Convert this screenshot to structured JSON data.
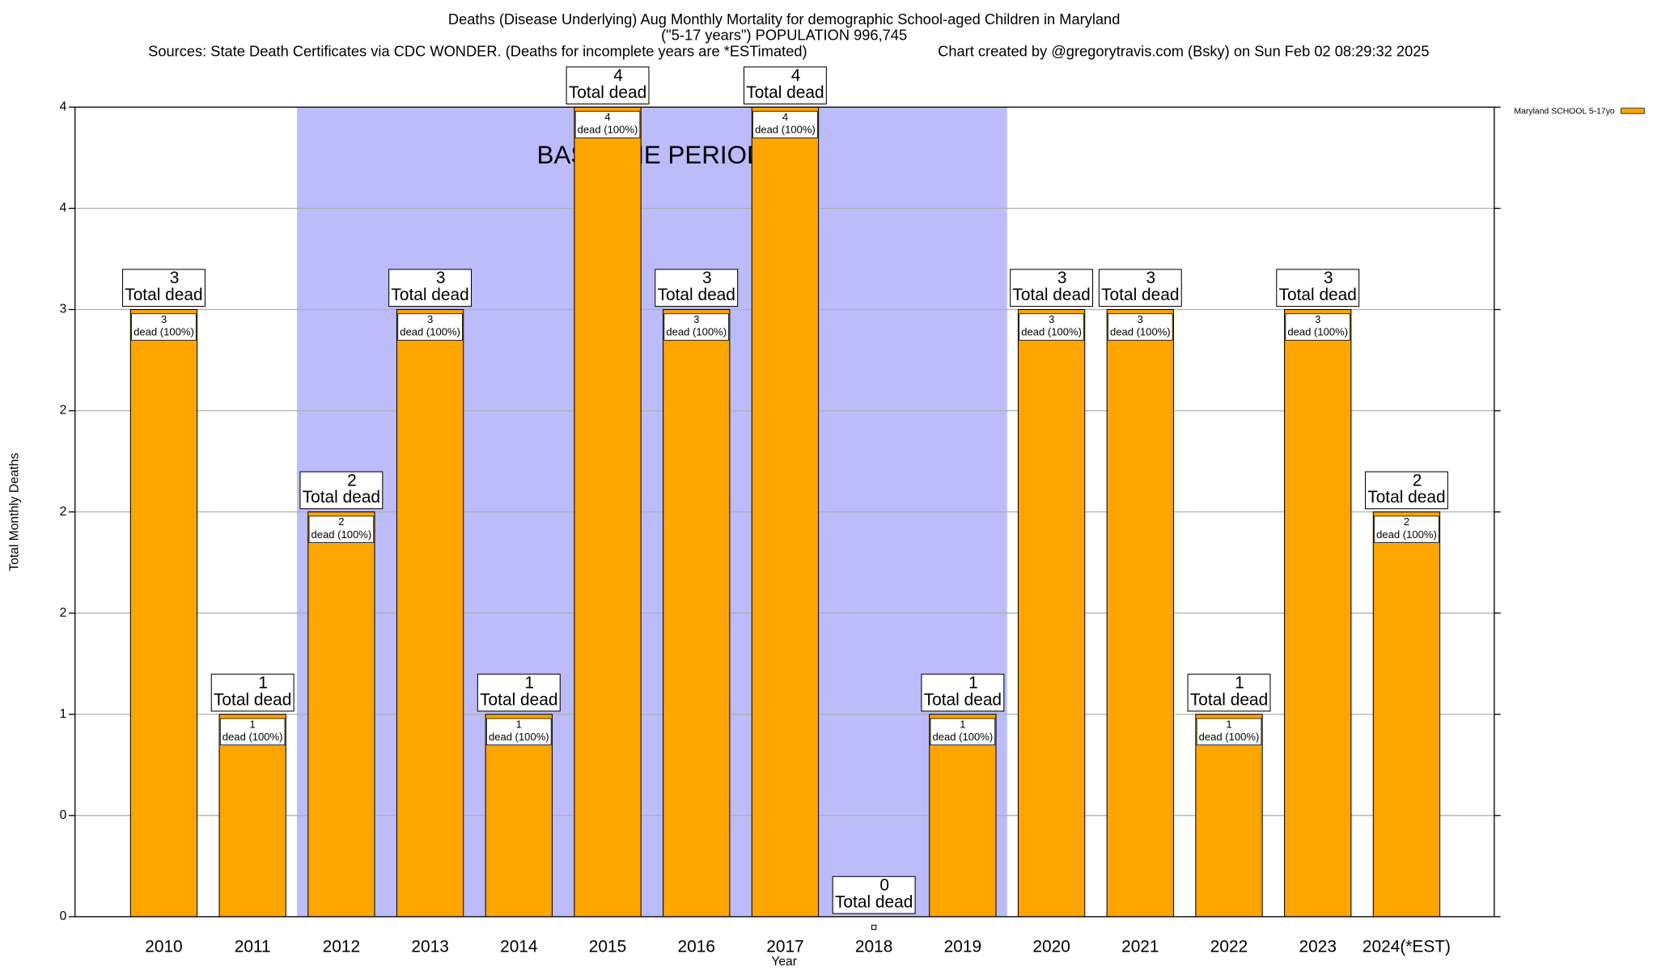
{
  "chart_data": {
    "type": "bar",
    "title": "Deaths (Disease Underlying) Aug Monthly Mortality for demographic School-aged Children in Maryland",
    "subtitle": "(\"5-17 years\") POPULATION 996,745",
    "source": "Sources: State Death Certificates via CDC WONDER. (Deaths for incomplete years are *ESTimated)",
    "credit": "Chart created by @gregorytravis.com (Bsky) on Sun Feb 02 08:29:32 2025",
    "xlabel": "Year",
    "ylabel": "Total Monthly Deaths",
    "categories": [
      "2010",
      "2011",
      "2012",
      "2013",
      "2014",
      "2015",
      "2016",
      "2017",
      "2018",
      "2019",
      "2020",
      "2021",
      "2022",
      "2023",
      "2024(*EST)"
    ],
    "series": [
      {
        "name": "Maryland SCHOOL 5-17yo",
        "color": "#ffa500",
        "values": [
          3,
          1,
          2,
          3,
          1,
          4,
          3,
          4,
          0,
          1,
          3,
          3,
          1,
          3,
          2
        ]
      }
    ],
    "total_label": "Total dead",
    "share_label": "dead (100%)",
    "annotation": {
      "text": "BASELINE PERIOD",
      "from": "2012",
      "to": "2019",
      "color": "#bcbcfa"
    },
    "ylim": [
      0,
      4
    ],
    "yticks": [
      0,
      {
        "value": 0.5,
        "label": "0"
      },
      1,
      {
        "value": 1.5,
        "label": "2"
      },
      2,
      {
        "value": 2.5,
        "label": "2"
      },
      3,
      {
        "value": 3.5,
        "label": "4"
      },
      4
    ],
    "grid": true,
    "legend": "upper right"
  }
}
